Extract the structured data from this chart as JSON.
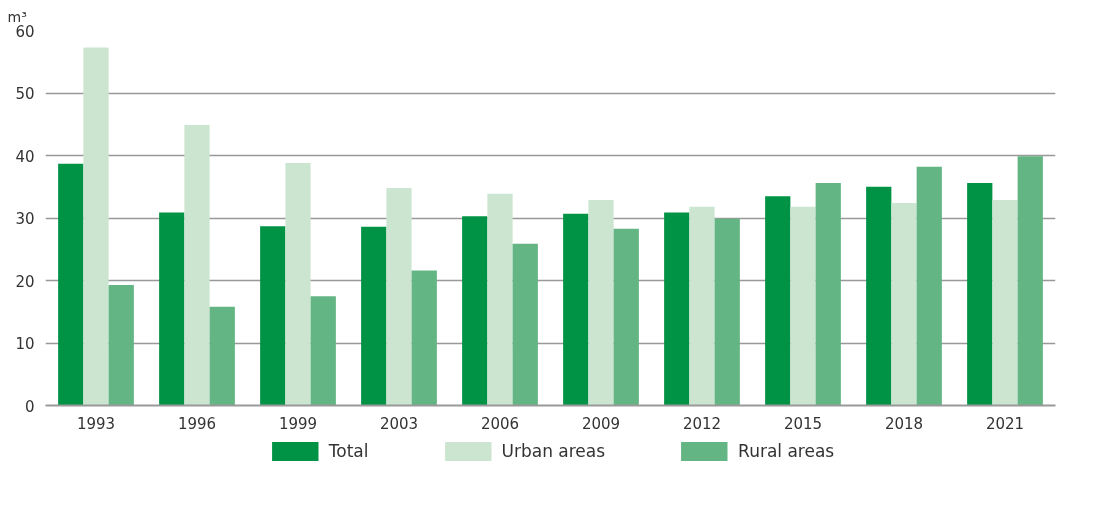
{
  "chart_data": {
    "type": "bar",
    "ylabel": "m³",
    "categories": [
      "1993",
      "1996",
      "1999",
      "2003",
      "2006",
      "2009",
      "2012",
      "2015",
      "2018",
      "2021"
    ],
    "series": [
      {
        "name": "Total",
        "color": "#009245",
        "values": [
          38.7,
          30.9,
          28.7,
          28.6,
          30.3,
          30.7,
          30.9,
          33.5,
          35.0,
          35.6
        ]
      },
      {
        "name": "Urban areas",
        "color": "#cce5d0",
        "values": [
          57.3,
          44.9,
          38.8,
          34.8,
          33.9,
          32.9,
          31.8,
          31.8,
          32.4,
          32.9
        ]
      },
      {
        "name": "Rural areas",
        "color": "#64b584",
        "values": [
          19.3,
          15.8,
          17.5,
          21.6,
          25.9,
          28.3,
          29.9,
          35.6,
          38.2,
          39.9
        ]
      }
    ],
    "ylim": [
      0,
      60
    ],
    "yticks": [
      0,
      10,
      20,
      30,
      40,
      50,
      60
    ],
    "grid": "y",
    "legend": "bottom"
  }
}
